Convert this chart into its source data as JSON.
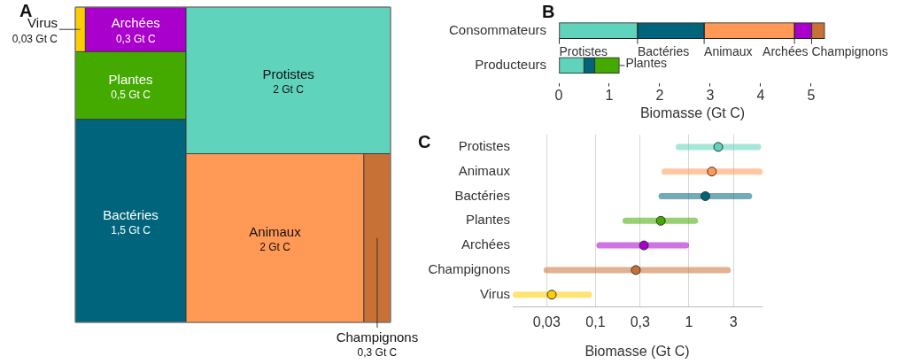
{
  "chart_data": [
    {
      "type": "other",
      "title": "A",
      "categories": [
        "Virus",
        "Archées",
        "Plantes",
        "Bactéries",
        "Protistes",
        "Animaux",
        "Champignons"
      ],
      "values": [
        0.03,
        0.3,
        0.5,
        1.5,
        2,
        2,
        0.3
      ],
      "value_labels": [
        "0,03 Gt C",
        "0,3 Gt C",
        "0,5 Gt C",
        "1,5 Gt C",
        "2 Gt C",
        "2 Gt C",
        "0,3 Gt C"
      ],
      "colors": [
        "#ffcc00",
        "#aa00cc",
        "#44aa00",
        "#00657c",
        "#5fd3bc",
        "#ff9955",
        "#c87137"
      ]
    },
    {
      "type": "bar",
      "title": "B",
      "orientation": "horizontal",
      "stacked": true,
      "categories": [
        "Consommateurs",
        "Producteurs"
      ],
      "series": [
        {
          "name": "Protistes",
          "color": "#5fd3bc",
          "values": [
            1.56,
            0.5
          ]
        },
        {
          "name": "Bactéries",
          "color": "#00657c",
          "values": [
            1.32,
            0.21
          ]
        },
        {
          "name": "Animaux",
          "color": "#ff9955",
          "values": [
            1.79,
            null
          ]
        },
        {
          "name": "Archées",
          "color": "#aa00cc",
          "values": [
            0.34,
            null
          ]
        },
        {
          "name": "Champignons",
          "color": "#c87137",
          "values": [
            0.26,
            null
          ]
        },
        {
          "name": "Plantes",
          "color": "#44aa00",
          "values": [
            null,
            0.49
          ]
        }
      ],
      "xlim": [
        0,
        5.3
      ],
      "xticks": [
        0,
        1,
        2,
        3,
        4,
        5
      ],
      "xlabel": "Biomasse (Gt C)"
    },
    {
      "type": "scatter",
      "title": "C",
      "orientation": "horizontal",
      "categories": [
        "Protistes",
        "Animaux",
        "Bactéries",
        "Plantes",
        "Archées",
        "Champignons",
        "Virus"
      ],
      "values": [
        2.06,
        1.76,
        1.5,
        0.5,
        0.33,
        0.27,
        0.034
      ],
      "errors": [
        [
          0.78,
          5.5
        ],
        [
          0.55,
          5.7
        ],
        [
          0.51,
          4.4
        ],
        [
          0.21,
          1.16
        ],
        [
          0.11,
          0.93
        ],
        [
          0.03,
          2.6
        ],
        [
          0.014,
          0.085
        ]
      ],
      "colors": [
        "#5fd3bc",
        "#ff9955",
        "#00657c",
        "#44aa00",
        "#aa00cc",
        "#c87137",
        "#ffcc00"
      ],
      "xlim": [
        0.013,
        6
      ],
      "xticks": [
        {
          "value": 0.03,
          "label": "0,03"
        },
        {
          "value": 0.1,
          "label": "0,1"
        },
        {
          "value": 0.3,
          "label": "0,3"
        },
        1,
        3
      ],
      "log": "x",
      "grid": "x",
      "marker": "circle",
      "xlabel": "Biomasse (Gt C)"
    }
  ]
}
